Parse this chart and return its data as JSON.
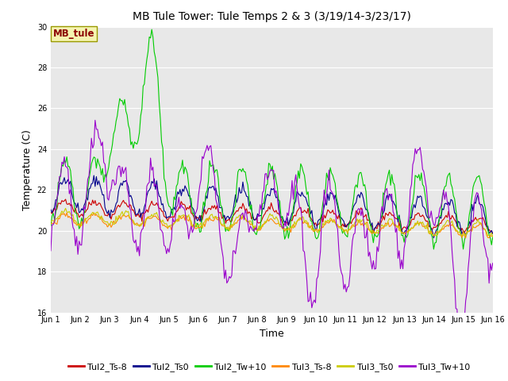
{
  "title": "MB Tule Tower: Tule Temps 2 & 3 (3/19/14-3/23/17)",
  "xlabel": "Time",
  "ylabel": "Temperature (C)",
  "ylim": [
    16,
    30
  ],
  "yticks": [
    16,
    18,
    20,
    22,
    24,
    26,
    28,
    30
  ],
  "xlim": [
    0,
    15
  ],
  "xtick_labels": [
    "Jun 1",
    "Jun 2",
    "Jun 3",
    "Jun 4",
    "Jun 5",
    "Jun 6",
    "Jun 7",
    "Jun 8",
    "Jun 9",
    "Jun 10",
    "Jun 11",
    "Jun 12",
    "Jun 13",
    "Jun 14",
    "Jun 15",
    "Jun 16"
  ],
  "xtick_positions": [
    0,
    1,
    2,
    3,
    4,
    5,
    6,
    7,
    8,
    9,
    10,
    11,
    12,
    13,
    14,
    15
  ],
  "bg_color": "#e8e8e8",
  "fig_color": "#ffffff",
  "annotation_text": "MB_tule",
  "annotation_color": "#8b0000",
  "annotation_bg": "#f5f5b0",
  "annotation_border": "#999900",
  "series": {
    "Tul2_Ts-8": {
      "color": "#cc0000"
    },
    "Tul2_Ts0": {
      "color": "#00008b"
    },
    "Tul2_Tw+10": {
      "color": "#00cc00"
    },
    "Tul3_Ts-8": {
      "color": "#ff8800"
    },
    "Tul3_Ts0": {
      "color": "#cccc00"
    },
    "Tul3_Tw+10": {
      "color": "#9900cc"
    }
  },
  "title_fontsize": 10,
  "axis_fontsize": 9,
  "tick_fontsize": 7,
  "legend_fontsize": 8
}
